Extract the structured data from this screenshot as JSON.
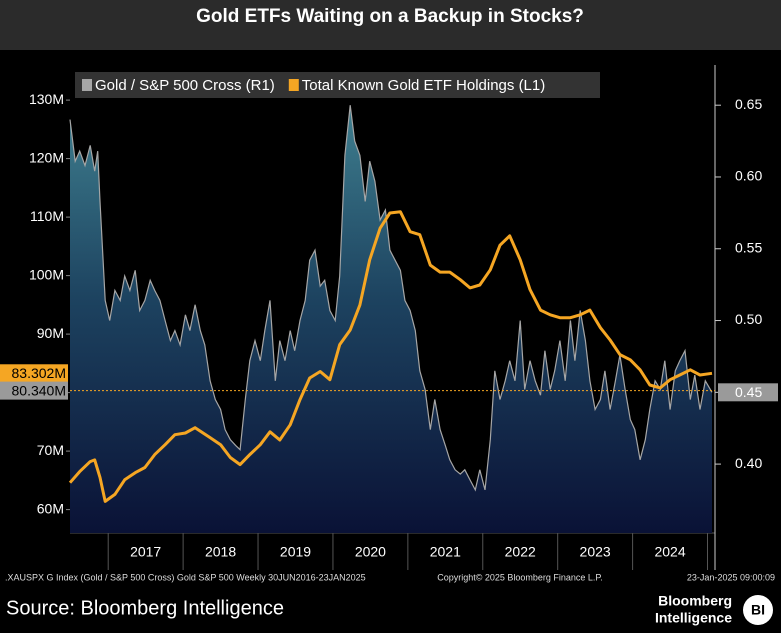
{
  "chart_data": {
    "type": "line",
    "title": "Gold ETFs Waiting on a Backup in Stocks?",
    "source": "Source: Bloomberg Intelligence",
    "footer_left": ".XAUSPX G Index (Gold / S&P 500 Cross) Gold S&P 500  Weekly 30JUN2016-23JAN2025",
    "footer_center": "Copyright© 2025 Bloomberg Finance L.P.",
    "footer_right": "23-Jan-2025 09:00:09",
    "logo": [
      "Bloomberg",
      "Intelligence"
    ],
    "logo_mark": "BI",
    "xlim": [
      2016.49,
      2025.1
    ],
    "xticks": [
      {
        "value": 2017.5,
        "label": "2017"
      },
      {
        "value": 2018.5,
        "label": "2018"
      },
      {
        "value": 2019.5,
        "label": "2019"
      },
      {
        "value": 2020.5,
        "label": "2020"
      },
      {
        "value": 2021.5,
        "label": "2021"
      },
      {
        "value": 2022.5,
        "label": "2022"
      },
      {
        "value": 2023.5,
        "label": "2023"
      },
      {
        "value": 2024.5,
        "label": "2024"
      }
    ],
    "xgrid": [
      2017,
      2018,
      2019,
      2020,
      2021,
      2022,
      2023,
      2024,
      2025
    ],
    "ylim": [
      56000000,
      136000000
    ],
    "yticks": [
      {
        "value": 60000000,
        "label": "60M"
      },
      {
        "value": 70000000,
        "label": "70M"
      },
      {
        "value": 80000000,
        "label": "80M"
      },
      {
        "value": 90000000,
        "label": "90M"
      },
      {
        "value": 100000000,
        "label": "100M"
      },
      {
        "value": 110000000,
        "label": "110M"
      },
      {
        "value": 120000000,
        "label": "120M"
      },
      {
        "value": 130000000,
        "label": "130M"
      }
    ],
    "y2lim": [
      0.352,
      0.678
    ],
    "y2ticks": [
      {
        "value": 0.4,
        "label": "0.40"
      },
      0.45,
      {
        "value": 0.5,
        "label": "0.50"
      },
      0.55,
      {
        "value": 0.6,
        "label": "0.60"
      },
      0.65
    ],
    "legend": "top-left",
    "series": [
      {
        "name": "Gold / S&P 500 Cross (R1)",
        "color": "#a6a6a6",
        "axis": "y2",
        "area": true,
        "x": [
          2016.49,
          2016.56,
          2016.62,
          2016.69,
          2016.76,
          2016.82,
          2016.86,
          2016.89,
          2016.96,
          2017.02,
          2017.09,
          2017.16,
          2017.22,
          2017.29,
          2017.36,
          2017.42,
          2017.49,
          2017.56,
          2017.62,
          2017.69,
          2017.76,
          2017.83,
          2017.89,
          2017.96,
          2018.03,
          2018.09,
          2018.16,
          2018.23,
          2018.29,
          2018.36,
          2018.43,
          2018.5,
          2018.56,
          2018.63,
          2018.7,
          2018.76,
          2018.83,
          2018.89,
          2018.96,
          2019.03,
          2019.09,
          2019.16,
          2019.23,
          2019.29,
          2019.36,
          2019.43,
          2019.49,
          2019.56,
          2019.63,
          2019.69,
          2019.76,
          2019.83,
          2019.89,
          2019.96,
          2020.03,
          2020.09,
          2020.16,
          2020.23,
          2020.29,
          2020.36,
          2020.43,
          2020.49,
          2020.56,
          2020.63,
          2020.7,
          2020.76,
          2020.83,
          2020.9,
          2020.96,
          2021.03,
          2021.1,
          2021.16,
          2021.23,
          2021.3,
          2021.36,
          2021.43,
          2021.5,
          2021.56,
          2021.63,
          2021.7,
          2021.76,
          2021.83,
          2021.9,
          2021.96,
          2022.03,
          2022.1,
          2022.16,
          2022.23,
          2022.3,
          2022.36,
          2022.43,
          2022.5,
          2022.56,
          2022.63,
          2022.7,
          2022.77,
          2022.83,
          2022.9,
          2022.96,
          2023.03,
          2023.1,
          2023.17,
          2023.23,
          2023.3,
          2023.37,
          2023.43,
          2023.5,
          2023.57,
          2023.63,
          2023.7,
          2023.77,
          2023.83,
          2023.9,
          2023.97,
          2024.03,
          2024.1,
          2024.17,
          2024.23,
          2024.3,
          2024.37,
          2024.43,
          2024.5,
          2024.57,
          2024.63,
          2024.7,
          2024.77,
          2024.83,
          2024.9,
          2024.97,
          2025.06
        ],
        "values": [
          0.64,
          0.611,
          0.618,
          0.608,
          0.622,
          0.604,
          0.618,
          0.583,
          0.514,
          0.5,
          0.521,
          0.514,
          0.531,
          0.521,
          0.535,
          0.507,
          0.514,
          0.528,
          0.521,
          0.514,
          0.5,
          0.486,
          0.493,
          0.483,
          0.504,
          0.493,
          0.511,
          0.493,
          0.483,
          0.458,
          0.445,
          0.438,
          0.424,
          0.417,
          0.413,
          0.41,
          0.445,
          0.472,
          0.486,
          0.472,
          0.493,
          0.514,
          0.458,
          0.486,
          0.472,
          0.493,
          0.479,
          0.5,
          0.514,
          0.542,
          0.549,
          0.524,
          0.528,
          0.507,
          0.5,
          0.531,
          0.615,
          0.65,
          0.625,
          0.615,
          0.583,
          0.611,
          0.597,
          0.57,
          0.577,
          0.549,
          0.542,
          0.535,
          0.514,
          0.507,
          0.493,
          0.465,
          0.452,
          0.424,
          0.445,
          0.424,
          0.413,
          0.403,
          0.396,
          0.393,
          0.396,
          0.389,
          0.382,
          0.396,
          0.382,
          0.417,
          0.465,
          0.445,
          0.458,
          0.472,
          0.458,
          0.5,
          0.452,
          0.472,
          0.458,
          0.448,
          0.479,
          0.452,
          0.465,
          0.486,
          0.458,
          0.5,
          0.472,
          0.507,
          0.486,
          0.458,
          0.438,
          0.445,
          0.465,
          0.438,
          0.458,
          0.476,
          0.452,
          0.431,
          0.424,
          0.403,
          0.417,
          0.438,
          0.458,
          0.452,
          0.472,
          0.438,
          0.465,
          0.472,
          0.479,
          0.445,
          0.462,
          0.438,
          0.458,
          0.45
        ]
      },
      {
        "name": "Total Known Gold ETF Holdings (L1)",
        "color": "#f5a623",
        "axis": "y",
        "x": [
          2016.49,
          2016.62,
          2016.76,
          2016.82,
          2016.89,
          2016.96,
          2017.09,
          2017.22,
          2017.36,
          2017.49,
          2017.62,
          2017.76,
          2017.89,
          2018.03,
          2018.16,
          2018.36,
          2018.5,
          2018.63,
          2018.76,
          2018.89,
          2019.03,
          2019.16,
          2019.29,
          2019.43,
          2019.56,
          2019.69,
          2019.83,
          2019.96,
          2020.09,
          2020.23,
          2020.36,
          2020.49,
          2020.63,
          2020.76,
          2020.9,
          2021.03,
          2021.16,
          2021.3,
          2021.43,
          2021.56,
          2021.7,
          2021.83,
          2021.96,
          2022.1,
          2022.23,
          2022.36,
          2022.5,
          2022.63,
          2022.77,
          2022.9,
          2023.03,
          2023.17,
          2023.3,
          2023.43,
          2023.57,
          2023.7,
          2023.83,
          2023.97,
          2024.1,
          2024.23,
          2024.37,
          2024.5,
          2024.63,
          2024.77,
          2024.9,
          2025.06
        ],
        "values": [
          64600000,
          66500000,
          68200000,
          68500000,
          65500000,
          61400000,
          62600000,
          65100000,
          66300000,
          67200000,
          69400000,
          71100000,
          72800000,
          73100000,
          74000000,
          72300000,
          71100000,
          68900000,
          67700000,
          69400000,
          71100000,
          73300000,
          71900000,
          74500000,
          78800000,
          82500000,
          83600000,
          82200000,
          88200000,
          90700000,
          95000000,
          102700000,
          108100000,
          110700000,
          110900000,
          107500000,
          107000000,
          101800000,
          100600000,
          100600000,
          99300000,
          97900000,
          98400000,
          101000000,
          105200000,
          106800000,
          102700000,
          97600000,
          94100000,
          93300000,
          92800000,
          92800000,
          93300000,
          94100000,
          91100000,
          89000000,
          86500000,
          85600000,
          83900000,
          81300000,
          80800000,
          82200000,
          83000000,
          83900000,
          83000000,
          83302000
        ]
      }
    ],
    "annotations": [
      {
        "label": "83.302M",
        "value": 83302000,
        "axis": "y",
        "color": "#f5a623"
      },
      {
        "label": "80.340M",
        "value": 80340000,
        "axis": "y",
        "color": "#9a9a9a"
      },
      {
        "label": "0.45",
        "value": 0.45,
        "axis": "y2",
        "color": "#9a9a9a"
      }
    ]
  }
}
